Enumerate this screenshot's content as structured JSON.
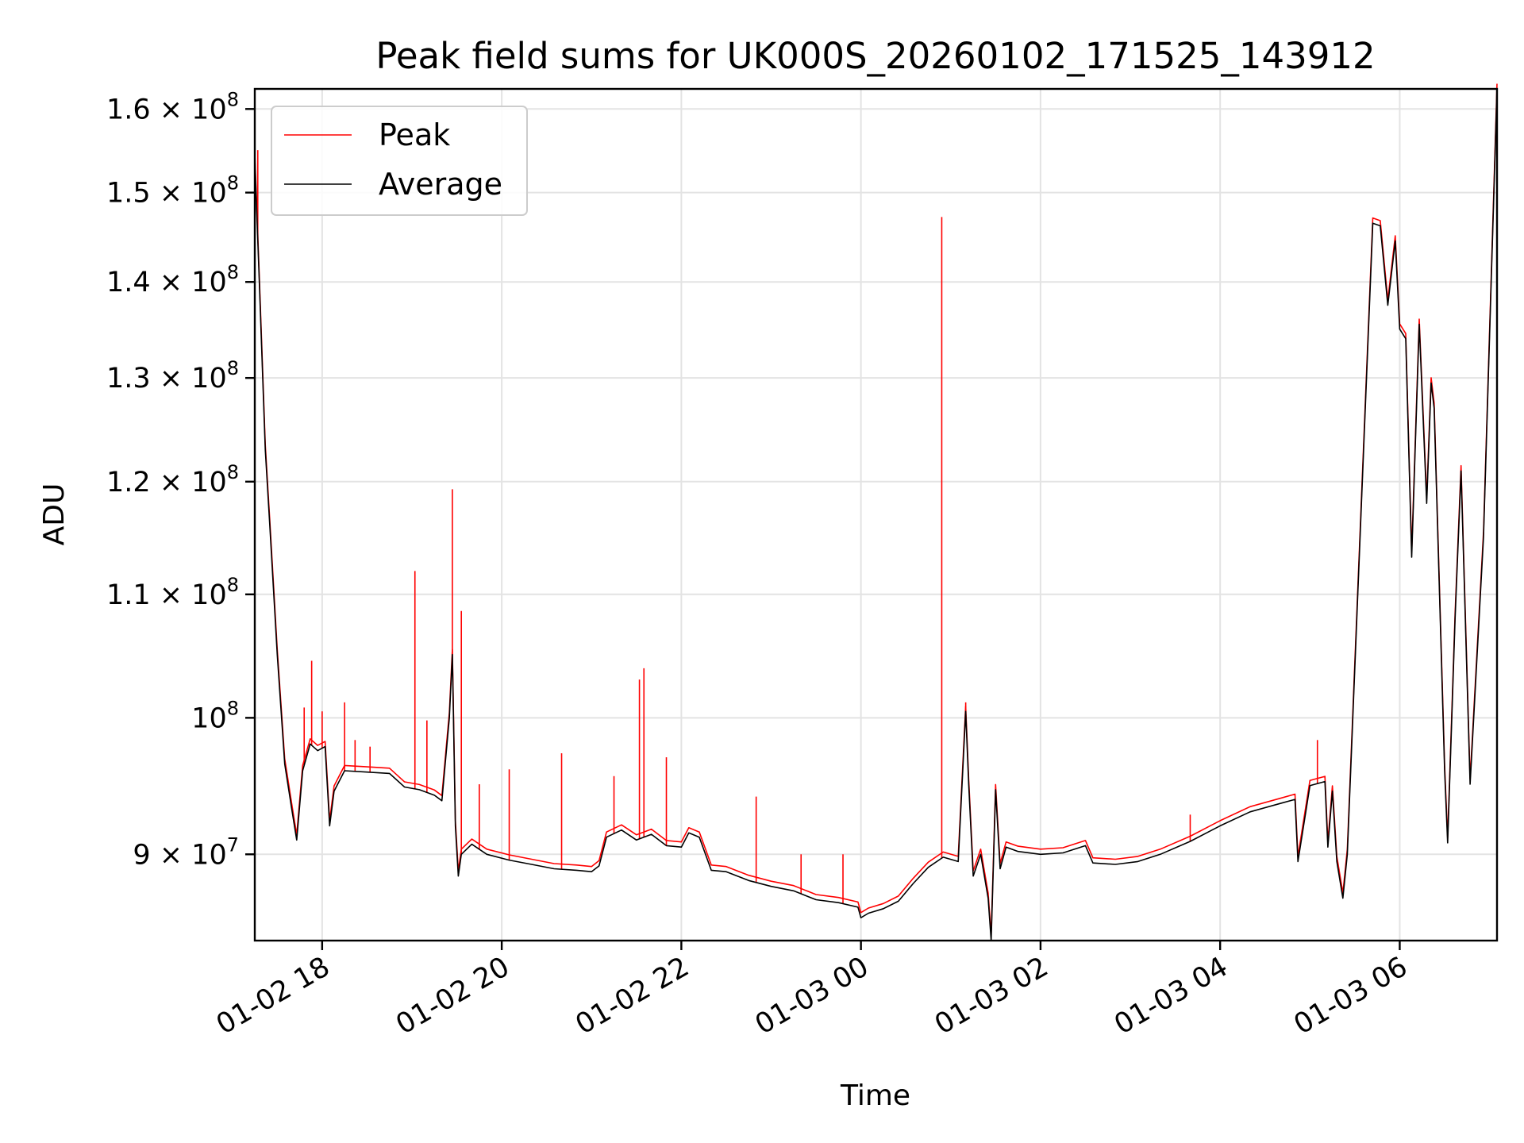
{
  "chart_data": {
    "type": "line",
    "title": "Peak field sums for UK000S_20260102_171525_143912",
    "xlabel": "Time",
    "ylabel": "ADU",
    "yscale": "log",
    "grid": true,
    "legend_position": "top-left",
    "xlim": [
      "2026-01-02 17:15",
      "2026-01-03 07:05"
    ],
    "ylim": [
      84200000,
      162500000
    ],
    "x_ticks": [
      "01-02 18",
      "01-02 20",
      "01-02 22",
      "01-03 00",
      "01-03 02",
      "01-03 04",
      "01-03 06"
    ],
    "x_tick_times": [
      "2026-01-02 18:00",
      "2026-01-02 20:00",
      "2026-01-02 22:00",
      "2026-01-03 00:00",
      "2026-01-03 02:00",
      "2026-01-03 04:00",
      "2026-01-03 06:00"
    ],
    "y_ticks": [
      {
        "value": 90000000,
        "mantissa": "9",
        "exp": "7"
      },
      {
        "value": 100000000,
        "mantissa": "",
        "exp": "8"
      },
      {
        "value": 110000000,
        "mantissa": "1.1",
        "exp": "8"
      },
      {
        "value": 120000000,
        "mantissa": "1.2",
        "exp": "8"
      },
      {
        "value": 130000000,
        "mantissa": "1.3",
        "exp": "8"
      },
      {
        "value": 140000000,
        "mantissa": "1.4",
        "exp": "8"
      },
      {
        "value": 150000000,
        "mantissa": "1.5",
        "exp": "8"
      },
      {
        "value": 160000000,
        "mantissa": "1.6",
        "exp": "8"
      }
    ],
    "series": [
      {
        "name": "Average",
        "color": "#000000",
        "points": [
          [
            "2026-01-02 17:15",
            154000000
          ],
          [
            "2026-01-02 17:18",
            140000000
          ],
          [
            "2026-01-02 17:22",
            123000000
          ],
          [
            "2026-01-02 17:25",
            116000000
          ],
          [
            "2026-01-02 17:30",
            105000000
          ],
          [
            "2026-01-02 17:35",
            96500000
          ],
          [
            "2026-01-02 17:40",
            93000000
          ],
          [
            "2026-01-02 17:43",
            91000000
          ],
          [
            "2026-01-02 17:47",
            96000000
          ],
          [
            "2026-01-02 17:52",
            98000000
          ],
          [
            "2026-01-02 17:57",
            97500000
          ],
          [
            "2026-01-02 18:02",
            97800000
          ],
          [
            "2026-01-02 18:05",
            92000000
          ],
          [
            "2026-01-02 18:08",
            94500000
          ],
          [
            "2026-01-02 18:15",
            96000000
          ],
          [
            "2026-01-02 18:30",
            95900000
          ],
          [
            "2026-01-02 18:45",
            95800000
          ],
          [
            "2026-01-02 18:55",
            94800000
          ],
          [
            "2026-01-02 19:05",
            94600000
          ],
          [
            "2026-01-02 19:15",
            94200000
          ],
          [
            "2026-01-02 19:20",
            93800000
          ],
          [
            "2026-01-02 19:25",
            100000000
          ],
          [
            "2026-01-02 19:27",
            105000000
          ],
          [
            "2026-01-02 19:29",
            92000000
          ],
          [
            "2026-01-02 19:31",
            88500000
          ],
          [
            "2026-01-02 19:33",
            90000000
          ],
          [
            "2026-01-02 19:40",
            90700000
          ],
          [
            "2026-01-02 19:50",
            90000000
          ],
          [
            "2026-01-02 20:05",
            89600000
          ],
          [
            "2026-01-02 20:20",
            89300000
          ],
          [
            "2026-01-02 20:35",
            89000000
          ],
          [
            "2026-01-02 20:50",
            88900000
          ],
          [
            "2026-01-02 21:00",
            88800000
          ],
          [
            "2026-01-02 21:05",
            89200000
          ],
          [
            "2026-01-02 21:10",
            91200000
          ],
          [
            "2026-01-02 21:20",
            91700000
          ],
          [
            "2026-01-02 21:30",
            91000000
          ],
          [
            "2026-01-02 21:40",
            91400000
          ],
          [
            "2026-01-02 21:50",
            90600000
          ],
          [
            "2026-01-02 22:00",
            90500000
          ],
          [
            "2026-01-02 22:05",
            91500000
          ],
          [
            "2026-01-02 22:12",
            91200000
          ],
          [
            "2026-01-02 22:20",
            88900000
          ],
          [
            "2026-01-02 22:30",
            88800000
          ],
          [
            "2026-01-02 22:45",
            88200000
          ],
          [
            "2026-01-02 23:00",
            87800000
          ],
          [
            "2026-01-02 23:15",
            87500000
          ],
          [
            "2026-01-02 23:30",
            86900000
          ],
          [
            "2026-01-02 23:45",
            86700000
          ],
          [
            "2026-01-02 23:58",
            86400000
          ],
          [
            "2026-01-03 00:00",
            85700000
          ],
          [
            "2026-01-03 00:05",
            86000000
          ],
          [
            "2026-01-03 00:15",
            86300000
          ],
          [
            "2026-01-03 00:25",
            86800000
          ],
          [
            "2026-01-03 00:35",
            88000000
          ],
          [
            "2026-01-03 00:45",
            89100000
          ],
          [
            "2026-01-03 00:55",
            89800000
          ],
          [
            "2026-01-03 01:05",
            89500000
          ],
          [
            "2026-01-03 01:08",
            96000000
          ],
          [
            "2026-01-03 01:10",
            100500000
          ],
          [
            "2026-01-03 01:12",
            95000000
          ],
          [
            "2026-01-03 01:15",
            88500000
          ],
          [
            "2026-01-03 01:20",
            90000000
          ],
          [
            "2026-01-03 01:25",
            87000000
          ],
          [
            "2026-01-03 01:27",
            84200000
          ],
          [
            "2026-01-03 01:30",
            94600000
          ],
          [
            "2026-01-03 01:33",
            89000000
          ],
          [
            "2026-01-03 01:37",
            90500000
          ],
          [
            "2026-01-03 01:45",
            90200000
          ],
          [
            "2026-01-03 02:00",
            90000000
          ],
          [
            "2026-01-03 02:15",
            90100000
          ],
          [
            "2026-01-03 02:30",
            90600000
          ],
          [
            "2026-01-03 02:35",
            89400000
          ],
          [
            "2026-01-03 02:50",
            89300000
          ],
          [
            "2026-01-03 03:05",
            89500000
          ],
          [
            "2026-01-03 03:20",
            90000000
          ],
          [
            "2026-01-03 03:40",
            90900000
          ],
          [
            "2026-01-03 04:00",
            92000000
          ],
          [
            "2026-01-03 04:20",
            93000000
          ],
          [
            "2026-01-03 04:40",
            93600000
          ],
          [
            "2026-01-03 04:50",
            93900000
          ],
          [
            "2026-01-03 04:52",
            89500000
          ],
          [
            "2026-01-03 04:55",
            91500000
          ],
          [
            "2026-01-03 05:00",
            94900000
          ],
          [
            "2026-01-03 05:10",
            95200000
          ],
          [
            "2026-01-03 05:12",
            90500000
          ],
          [
            "2026-01-03 05:15",
            94500000
          ],
          [
            "2026-01-03 05:18",
            89500000
          ],
          [
            "2026-01-03 05:22",
            87000000
          ],
          [
            "2026-01-03 05:25",
            90000000
          ],
          [
            "2026-01-03 05:35",
            120000000
          ],
          [
            "2026-01-03 05:42",
            146500000
          ],
          [
            "2026-01-03 05:47",
            146200000
          ],
          [
            "2026-01-03 05:52",
            137500000
          ],
          [
            "2026-01-03 05:57",
            144500000
          ],
          [
            "2026-01-03 06:00",
            135000000
          ],
          [
            "2026-01-03 06:04",
            134000000
          ],
          [
            "2026-01-03 06:08",
            113200000
          ],
          [
            "2026-01-03 06:13",
            135500000
          ],
          [
            "2026-01-03 06:18",
            118000000
          ],
          [
            "2026-01-03 06:21",
            129500000
          ],
          [
            "2026-01-03 06:23",
            127000000
          ],
          [
            "2026-01-03 06:30",
            96000000
          ],
          [
            "2026-01-03 06:32",
            90800000
          ],
          [
            "2026-01-03 06:37",
            108000000
          ],
          [
            "2026-01-03 06:41",
            121000000
          ],
          [
            "2026-01-03 06:47",
            95000000
          ],
          [
            "2026-01-03 06:56",
            115000000
          ],
          [
            "2026-01-03 07:05",
            162500000
          ]
        ]
      },
      {
        "name": "Peak",
        "color": "#ff0000",
        "spikes": [
          [
            "2026-01-02 17:17",
            155000000
          ],
          [
            "2026-01-02 17:48",
            100800000
          ],
          [
            "2026-01-02 17:53",
            104500000
          ],
          [
            "2026-01-02 18:00",
            100500000
          ],
          [
            "2026-01-02 18:15",
            101200000
          ],
          [
            "2026-01-02 18:22",
            98300000
          ],
          [
            "2026-01-02 18:32",
            97800000
          ],
          [
            "2026-01-02 19:02",
            112000000
          ],
          [
            "2026-01-02 19:10",
            99800000
          ],
          [
            "2026-01-02 19:27",
            119300000
          ],
          [
            "2026-01-02 19:33",
            108600000
          ],
          [
            "2026-01-02 19:45",
            95000000
          ],
          [
            "2026-01-02 20:05",
            96100000
          ],
          [
            "2026-01-02 20:40",
            97300000
          ],
          [
            "2026-01-02 21:15",
            95600000
          ],
          [
            "2026-01-02 21:32",
            103000000
          ],
          [
            "2026-01-02 21:35",
            103900000
          ],
          [
            "2026-01-02 21:50",
            97000000
          ],
          [
            "2026-01-02 22:50",
            94100000
          ],
          [
            "2026-01-02 23:20",
            90000000
          ],
          [
            "2026-01-02 23:48",
            90000000
          ],
          [
            "2026-01-03 00:54",
            147200000
          ],
          [
            "2026-01-03 01:10",
            101200000
          ],
          [
            "2026-01-03 03:40",
            92800000
          ],
          [
            "2026-01-03 05:05",
            98300000
          ]
        ]
      }
    ]
  }
}
